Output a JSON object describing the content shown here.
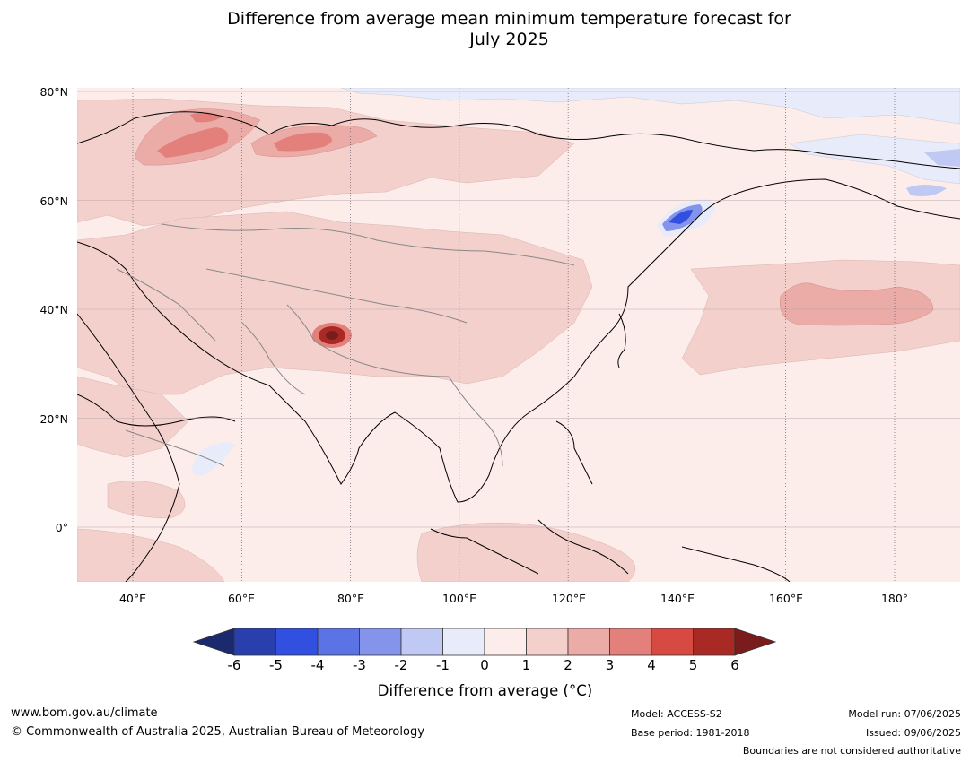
{
  "title_lines": [
    "Difference from average mean minimum temperature forecast for",
    "July 2025"
  ],
  "map": {
    "lat_labels": [
      "80°N",
      "60°N",
      "40°N",
      "20°N",
      "0°"
    ],
    "lat_values": [
      80,
      60,
      40,
      20,
      0
    ],
    "lon_labels": [
      "40°E",
      "60°E",
      "80°E",
      "100°E",
      "120°E",
      "140°E",
      "160°E",
      "180°"
    ],
    "lon_values": [
      40,
      60,
      80,
      100,
      120,
      140,
      160,
      180
    ],
    "lon_range": [
      30,
      192
    ],
    "lat_range": [
      -10,
      81
    ]
  },
  "colorbar": {
    "ticks": [
      "-6",
      "-5",
      "-4",
      "-3",
      "-2",
      "-1",
      "0",
      "1",
      "2",
      "3",
      "4",
      "5",
      "6"
    ],
    "colors": [
      "#1b2a6e",
      "#2a3fae",
      "#3150e0",
      "#5b73e4",
      "#8594eb",
      "#c0c8f4",
      "#e8ebfa",
      "#fcecea",
      "#f4d0cd",
      "#ebaba7",
      "#e3807b",
      "#d64a41",
      "#a92a24",
      "#7a1c1c"
    ],
    "label": "Difference from average (°C)"
  },
  "footer": {
    "website": "www.bom.gov.au/climate",
    "copyright": "© Commonwealth of Australia 2025, Australian Bureau of Meteorology",
    "model": "Model: ACCESS-S2",
    "base_period": "Base period: 1981-2018",
    "model_run": "Model run: 07/06/2025",
    "issued": "Issued: 09/06/2025",
    "boundaries": "Boundaries are not considered authoritative"
  }
}
